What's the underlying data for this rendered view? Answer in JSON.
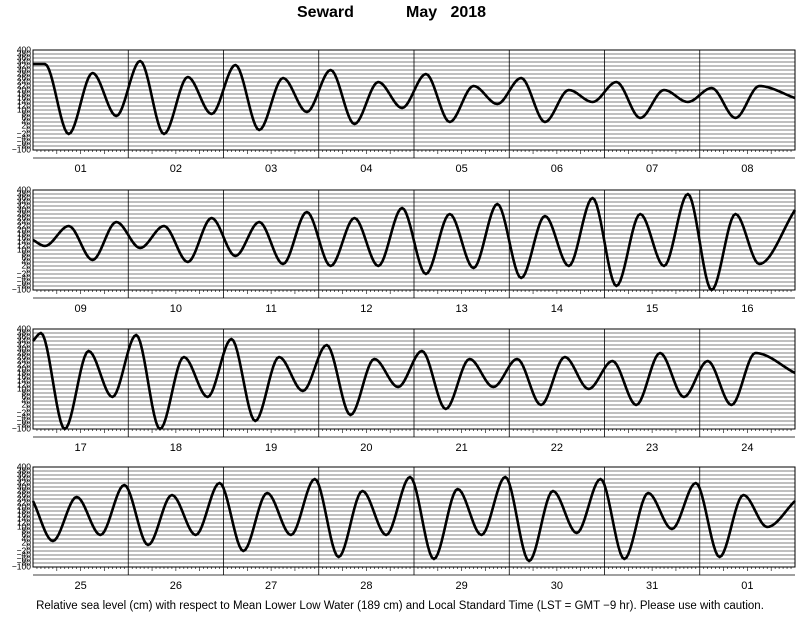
{
  "title": {
    "station": "Seward",
    "month": "May",
    "year": "2018"
  },
  "caption": "Relative sea level (cm) with respect to Mean Lower Low Water (189 cm) and Local Standard Time (LST = GMT −9 hr). Please use with caution.",
  "colors": {
    "curve": "#000000",
    "grid": "#000000",
    "background": "#ffffff"
  },
  "chart_data": {
    "type": "line",
    "ylabel": "",
    "ylim": [
      -100,
      400
    ],
    "yticks": [
      -100,
      -80,
      -60,
      -40,
      -20,
      0,
      20,
      40,
      60,
      80,
      100,
      120,
      140,
      160,
      180,
      200,
      220,
      240,
      260,
      280,
      300,
      320,
      340,
      360,
      380,
      400
    ],
    "ytick_labels": [
      "−100",
      "−80",
      "−60",
      "−40",
      "−20",
      "0",
      "20",
      "40",
      "60",
      "80",
      "100",
      "120",
      "140",
      "160",
      "180",
      "200",
      "220",
      "240",
      "260",
      "280",
      "300",
      "320",
      "340",
      "360",
      "380",
      "400"
    ],
    "x_unit": "hours since local midnight of the first day in each panel",
    "grid": true,
    "panels": [
      {
        "days": [
          "01",
          "02",
          "03",
          "04",
          "05",
          "06",
          "07",
          "08"
        ],
        "points": [
          [
            0,
            330
          ],
          [
            3,
            330
          ],
          [
            9,
            -20
          ],
          [
            15,
            285
          ],
          [
            21,
            70
          ],
          [
            27,
            345
          ],
          [
            33,
            -20
          ],
          [
            39,
            265
          ],
          [
            45,
            80
          ],
          [
            51,
            325
          ],
          [
            57,
            0
          ],
          [
            63,
            260
          ],
          [
            69,
            90
          ],
          [
            75,
            300
          ],
          [
            81,
            30
          ],
          [
            87,
            240
          ],
          [
            93,
            110
          ],
          [
            99,
            280
          ],
          [
            105,
            40
          ],
          [
            111,
            220
          ],
          [
            117,
            130
          ],
          [
            123,
            260
          ],
          [
            129,
            40
          ],
          [
            135,
            200
          ],
          [
            141,
            140
          ],
          [
            147,
            240
          ],
          [
            153,
            60
          ],
          [
            159,
            200
          ],
          [
            165,
            140
          ],
          [
            171,
            210
          ],
          [
            177,
            60
          ],
          [
            183,
            220
          ],
          [
            192,
            160
          ]
        ]
      },
      {
        "days": [
          "09",
          "10",
          "11",
          "12",
          "13",
          "14",
          "15",
          "16"
        ],
        "points": [
          [
            0,
            150
          ],
          [
            3,
            120
          ],
          [
            9,
            220
          ],
          [
            15,
            50
          ],
          [
            21,
            240
          ],
          [
            27,
            110
          ],
          [
            33,
            220
          ],
          [
            39,
            40
          ],
          [
            45,
            260
          ],
          [
            51,
            70
          ],
          [
            57,
            240
          ],
          [
            63,
            30
          ],
          [
            69,
            290
          ],
          [
            75,
            20
          ],
          [
            81,
            260
          ],
          [
            87,
            20
          ],
          [
            93,
            310
          ],
          [
            99,
            -20
          ],
          [
            105,
            280
          ],
          [
            111,
            10
          ],
          [
            117,
            330
          ],
          [
            123,
            -40
          ],
          [
            129,
            270
          ],
          [
            135,
            20
          ],
          [
            141,
            360
          ],
          [
            147,
            -80
          ],
          [
            153,
            280
          ],
          [
            159,
            20
          ],
          [
            165,
            380
          ],
          [
            171,
            -100
          ],
          [
            177,
            280
          ],
          [
            183,
            30
          ],
          [
            192,
            300
          ]
        ]
      },
      {
        "days": [
          "17",
          "18",
          "19",
          "20",
          "21",
          "22",
          "23",
          "24"
        ],
        "points": [
          [
            0,
            340
          ],
          [
            2,
            380
          ],
          [
            8,
            -100
          ],
          [
            14,
            290
          ],
          [
            20,
            60
          ],
          [
            26,
            370
          ],
          [
            32,
            -100
          ],
          [
            38,
            260
          ],
          [
            44,
            60
          ],
          [
            50,
            350
          ],
          [
            56,
            -60
          ],
          [
            62,
            260
          ],
          [
            68,
            90
          ],
          [
            74,
            320
          ],
          [
            80,
            -30
          ],
          [
            86,
            250
          ],
          [
            92,
            110
          ],
          [
            98,
            290
          ],
          [
            104,
            0
          ],
          [
            110,
            250
          ],
          [
            116,
            110
          ],
          [
            122,
            250
          ],
          [
            128,
            20
          ],
          [
            134,
            260
          ],
          [
            140,
            100
          ],
          [
            146,
            240
          ],
          [
            152,
            20
          ],
          [
            158,
            280
          ],
          [
            164,
            60
          ],
          [
            170,
            240
          ],
          [
            176,
            20
          ],
          [
            182,
            280
          ],
          [
            192,
            180
          ]
        ]
      },
      {
        "days": [
          "25",
          "26",
          "27",
          "28",
          "29",
          "30",
          "31",
          "01"
        ],
        "points": [
          [
            0,
            230
          ],
          [
            5,
            30
          ],
          [
            11,
            250
          ],
          [
            17,
            60
          ],
          [
            23,
            310
          ],
          [
            29,
            10
          ],
          [
            35,
            260
          ],
          [
            41,
            60
          ],
          [
            47,
            320
          ],
          [
            53,
            -20
          ],
          [
            59,
            270
          ],
          [
            65,
            60
          ],
          [
            71,
            340
          ],
          [
            77,
            -50
          ],
          [
            83,
            280
          ],
          [
            89,
            60
          ],
          [
            95,
            350
          ],
          [
            101,
            -60
          ],
          [
            107,
            290
          ],
          [
            113,
            60
          ],
          [
            119,
            350
          ],
          [
            125,
            -70
          ],
          [
            131,
            280
          ],
          [
            137,
            70
          ],
          [
            143,
            340
          ],
          [
            149,
            -60
          ],
          [
            155,
            270
          ],
          [
            161,
            90
          ],
          [
            167,
            320
          ],
          [
            173,
            -50
          ],
          [
            179,
            260
          ],
          [
            185,
            100
          ],
          [
            192,
            230
          ]
        ]
      }
    ]
  }
}
